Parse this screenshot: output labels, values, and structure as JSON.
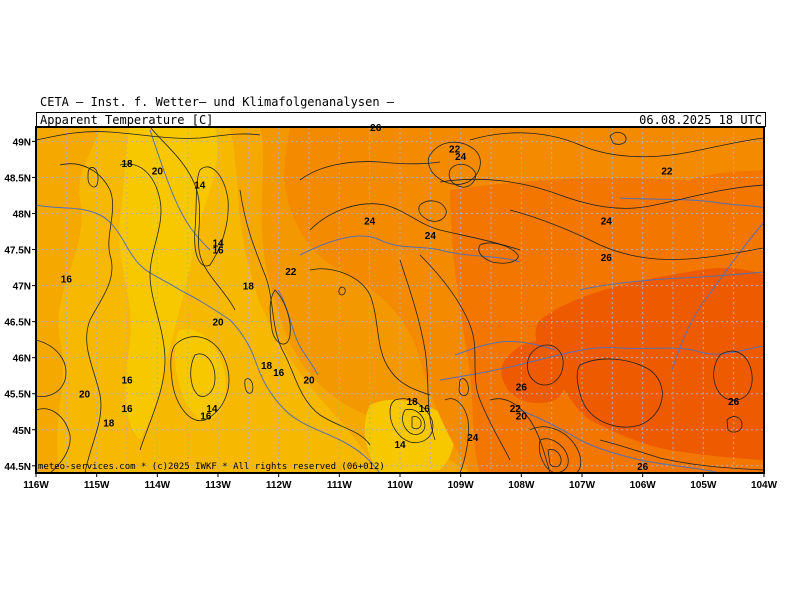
{
  "header": {
    "title": "CETA — Inst. f. Wetter— und Klimafolgenanalysen —",
    "variable": "Apparent Temperature [C]",
    "valid_time": "06.08.2025 18 UTC"
  },
  "credit": "meteo-services.com * (c)2025 IWKF * All rights reserved (06+012)",
  "colors": {
    "t14": "#f7c800",
    "t16": "#f6b800",
    "t18": "#f5a800",
    "t20": "#f49800",
    "t22": "#f48a00",
    "t24": "#f27600",
    "t26": "#ee5a00",
    "border": "#5a6fb0",
    "grid": "#b0b0b0",
    "contour": "#222222"
  },
  "map": {
    "lon_range": [
      -116,
      -104
    ],
    "lat_range": [
      44.4,
      49.2
    ],
    "x_ticks": [
      "116W",
      "115W",
      "114W",
      "113W",
      "112W",
      "111W",
      "110W",
      "109W",
      "108W",
      "107W",
      "106W",
      "105W",
      "104W"
    ],
    "y_ticks": [
      "49N",
      "48.5N",
      "48N",
      "47.5N",
      "47N",
      "46.5N",
      "46N",
      "45.5N",
      "45N",
      "44.5N"
    ],
    "contour_labels": [
      {
        "text": "26",
        "lon": -110.4,
        "lat": 49.2
      },
      {
        "text": "22",
        "lon": -109.1,
        "lat": 48.9
      },
      {
        "text": "24",
        "lon": -109.0,
        "lat": 48.8
      },
      {
        "text": "18",
        "lon": -114.5,
        "lat": 48.7
      },
      {
        "text": "20",
        "lon": -114.0,
        "lat": 48.6
      },
      {
        "text": "14",
        "lon": -113.3,
        "lat": 48.4
      },
      {
        "text": "22",
        "lon": -105.6,
        "lat": 48.6
      },
      {
        "text": "24",
        "lon": -110.5,
        "lat": 47.9
      },
      {
        "text": "24",
        "lon": -109.5,
        "lat": 47.7
      },
      {
        "text": "24",
        "lon": -106.6,
        "lat": 47.9
      },
      {
        "text": "14",
        "lon": -113.0,
        "lat": 47.6
      },
      {
        "text": "16",
        "lon": -113.0,
        "lat": 47.5
      },
      {
        "text": "26",
        "lon": -106.6,
        "lat": 47.4
      },
      {
        "text": "22",
        "lon": -111.8,
        "lat": 47.2
      },
      {
        "text": "16",
        "lon": -115.5,
        "lat": 47.1
      },
      {
        "text": "18",
        "lon": -112.5,
        "lat": 47.0
      },
      {
        "text": "20",
        "lon": -113.0,
        "lat": 46.5
      },
      {
        "text": "18",
        "lon": -112.2,
        "lat": 45.9
      },
      {
        "text": "16",
        "lon": -114.5,
        "lat": 45.7
      },
      {
        "text": "16",
        "lon": -112.0,
        "lat": 45.8
      },
      {
        "text": "20",
        "lon": -111.5,
        "lat": 45.7
      },
      {
        "text": "26",
        "lon": -108.0,
        "lat": 45.6
      },
      {
        "text": "20",
        "lon": -115.2,
        "lat": 45.5
      },
      {
        "text": "16",
        "lon": -114.5,
        "lat": 45.3
      },
      {
        "text": "14",
        "lon": -113.1,
        "lat": 45.3
      },
      {
        "text": "16",
        "lon": -113.2,
        "lat": 45.2
      },
      {
        "text": "18",
        "lon": -114.8,
        "lat": 45.1
      },
      {
        "text": "18",
        "lon": -109.8,
        "lat": 45.4
      },
      {
        "text": "16",
        "lon": -109.6,
        "lat": 45.3
      },
      {
        "text": "22",
        "lon": -108.1,
        "lat": 45.3
      },
      {
        "text": "20",
        "lon": -108.0,
        "lat": 45.2
      },
      {
        "text": "26",
        "lon": -104.5,
        "lat": 45.4
      },
      {
        "text": "24",
        "lon": -108.8,
        "lat": 44.9
      },
      {
        "text": "14",
        "lon": -110.0,
        "lat": 44.8
      },
      {
        "text": "26",
        "lon": -106.0,
        "lat": 44.5
      }
    ]
  }
}
